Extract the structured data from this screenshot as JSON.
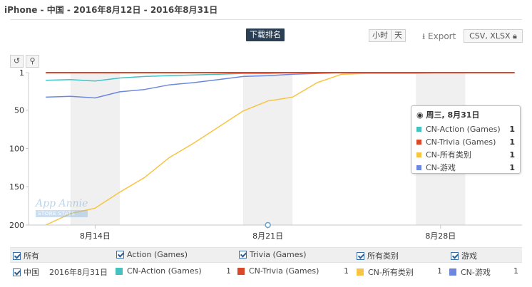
{
  "header": {
    "title": "iPhone - 中国 - 2016年8月12日 - 2016年8月31日",
    "chart_title": "下载排名",
    "granularity_options": [
      "小时",
      "天"
    ],
    "export_label": "Export",
    "csv_label": "CSV, XLSX"
  },
  "toolbar": {
    "reset_icon": "reset-icon",
    "zoom_icon": "zoom-icon"
  },
  "tooltip": {
    "date": "周三, 8月31日",
    "rows": [
      {
        "name": "CN-Action (Games)",
        "value": "1",
        "color": "#45c1c2"
      },
      {
        "name": "CN-Trivia (Games)",
        "value": "1",
        "color": "#d9482b"
      },
      {
        "name": "CN-所有类别",
        "value": "1",
        "color": "#f7c443"
      },
      {
        "name": "CN-游戏",
        "value": "1",
        "color": "#6c87e0"
      }
    ]
  },
  "watermark": {
    "name": "App Annie",
    "badge": "STORE STATS"
  },
  "legend": {
    "items": [
      "所有",
      "Action (Games)",
      "Trivia (Games)",
      "所有类别",
      "游戏"
    ]
  },
  "data_row": {
    "country": "中国",
    "date": "2016年8月31日",
    "items": [
      {
        "name": "CN-Action (Games)",
        "value": "1",
        "color": "#45c1c2"
      },
      {
        "name": "CN-Trivia (Games)",
        "value": "1",
        "color": "#d9482b"
      },
      {
        "name": "CN-所有类别",
        "value": "1",
        "color": "#f7c443"
      },
      {
        "name": "CN-游戏",
        "value": "1",
        "color": "#6c87e0"
      }
    ]
  },
  "chart_data": {
    "type": "line",
    "title": "下载排名",
    "y_reversed": true,
    "ylim": [
      1,
      200
    ],
    "yticks": [
      1,
      50,
      100,
      150,
      200
    ],
    "xlim": [
      11.3,
      31.3
    ],
    "xticks": [
      {
        "day": 14,
        "label": "8月14日"
      },
      {
        "day": 21,
        "label": "8月21日"
      },
      {
        "day": 28,
        "label": "8月28日"
      }
    ],
    "weekend_bands": [
      [
        13,
        15
      ],
      [
        20,
        22
      ],
      [
        27,
        29
      ]
    ],
    "x": [
      12,
      13,
      14,
      15,
      16,
      17,
      18,
      19,
      20,
      21,
      22,
      23,
      24,
      25,
      26,
      27,
      28,
      29,
      30,
      31
    ],
    "series": [
      {
        "name": "CN-Action (Games)",
        "color": "#45c1c2",
        "values": [
          11,
          10,
          12,
          8,
          6,
          5,
          4,
          3,
          2,
          2,
          1,
          1,
          1,
          1,
          1,
          1,
          1,
          1,
          1,
          1
        ]
      },
      {
        "name": "CN-Trivia (Games)",
        "color": "#d9482b",
        "values": [
          1,
          1,
          1,
          1,
          1,
          1,
          1,
          1,
          1,
          1,
          1,
          1,
          1,
          1,
          1,
          1,
          1,
          1,
          1,
          1
        ]
      },
      {
        "name": "CN-所有类别",
        "color": "#f7c443",
        "values": [
          200,
          185,
          178,
          157,
          138,
          112,
          93,
          72,
          51,
          38,
          33,
          14,
          3,
          2,
          2,
          2,
          1,
          1,
          1,
          1
        ]
      },
      {
        "name": "CN-游戏",
        "color": "#6c87e0",
        "values": [
          33,
          32,
          34,
          26,
          23,
          17,
          14,
          10,
          6,
          5,
          3,
          2,
          1,
          1,
          1,
          1,
          1,
          1,
          1,
          1
        ]
      }
    ]
  }
}
